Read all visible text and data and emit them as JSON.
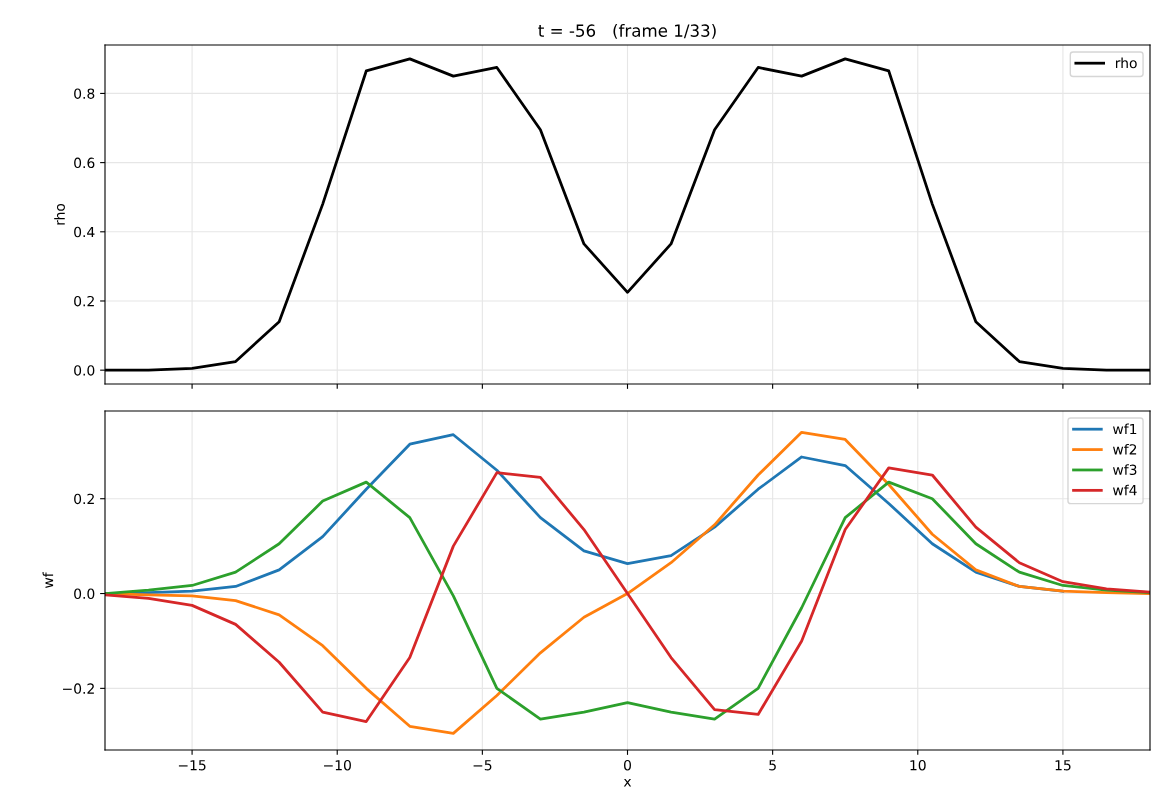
{
  "chart_data": [
    {
      "type": "line",
      "title": "t = -56   (frame 1/33)",
      "ylabel": "rho",
      "x": [
        -18,
        -16.5,
        -15,
        -13.5,
        -12,
        -10.5,
        -9,
        -7.5,
        -6,
        -4.5,
        -3,
        -1.5,
        0,
        1.5,
        3,
        4.5,
        6,
        7.5,
        9,
        10.5,
        12,
        13.5,
        15,
        16.5,
        18
      ],
      "series": [
        {
          "name": "rho",
          "color": "#000000",
          "values": [
            0.0,
            0.0,
            0.005,
            0.025,
            0.14,
            0.48,
            0.865,
            0.9,
            0.85,
            0.875,
            0.695,
            0.365,
            0.225,
            0.365,
            0.695,
            0.875,
            0.85,
            0.9,
            0.865,
            0.48,
            0.14,
            0.025,
            0.005,
            0.0,
            0.0
          ]
        }
      ],
      "xlim": [
        -18,
        18
      ],
      "xticks": [
        {
          "value": -15,
          "label": null
        },
        {
          "value": -10,
          "label": null
        },
        {
          "value": -5,
          "label": null
        },
        {
          "value": 0,
          "label": null
        },
        {
          "value": 5,
          "label": null
        },
        {
          "value": 10,
          "label": null
        },
        {
          "value": 15,
          "label": null
        }
      ],
      "ylim": [
        -0.04,
        0.94
      ],
      "yticks": [
        {
          "value": 0,
          "label": "0.0"
        },
        {
          "value": 0.2,
          "label": "0.2"
        },
        {
          "value": 0.4,
          "label": "0.4"
        },
        {
          "value": 0.6,
          "label": "0.6"
        },
        {
          "value": 0.8,
          "label": "0.8"
        }
      ],
      "tick_labels": "y",
      "grid": true,
      "legend": "top right"
    },
    {
      "type": "line",
      "xlabel": "x",
      "ylabel": "wf",
      "x": [
        -18,
        -16.5,
        -15,
        -13.5,
        -12,
        -10.5,
        -9,
        -7.5,
        -6,
        -4.5,
        -3,
        -1.5,
        0,
        1.5,
        3,
        4.5,
        6,
        7.5,
        9,
        10.5,
        12,
        13.5,
        15,
        16.5,
        18
      ],
      "series": [
        {
          "name": "wf1",
          "color": "#1f77b4",
          "values": [
            0.0,
            0.002,
            0.005,
            0.015,
            0.05,
            0.12,
            0.22,
            0.315,
            0.335,
            0.26,
            0.16,
            0.09,
            0.063,
            0.08,
            0.14,
            0.22,
            0.288,
            0.27,
            0.19,
            0.105,
            0.045,
            0.015,
            0.005,
            null,
            null
          ]
        },
        {
          "name": "wf2",
          "color": "#ff7f0e",
          "values": [
            0.0,
            -0.003,
            -0.005,
            -0.015,
            -0.045,
            -0.11,
            -0.2,
            -0.28,
            -0.295,
            -0.215,
            -0.125,
            -0.05,
            0.0,
            0.065,
            0.145,
            0.25,
            0.34,
            0.325,
            0.23,
            0.125,
            0.05,
            0.015,
            0.005,
            0.002,
            0.0
          ]
        },
        {
          "name": "wf3",
          "color": "#2ca02c",
          "values": [
            0.0,
            0.007,
            0.017,
            0.045,
            0.105,
            0.195,
            0.235,
            0.16,
            -0.005,
            -0.2,
            -0.265,
            -0.25,
            -0.23,
            -0.25,
            -0.265,
            -0.2,
            -0.03,
            0.16,
            0.235,
            0.2,
            0.105,
            0.045,
            0.017,
            0.007,
            0.002
          ]
        },
        {
          "name": "wf4",
          "color": "#d62728",
          "values": [
            -0.003,
            -0.01,
            -0.025,
            -0.065,
            -0.145,
            -0.25,
            -0.27,
            -0.135,
            0.1,
            0.255,
            0.245,
            0.135,
            0.0,
            -0.135,
            -0.245,
            -0.255,
            -0.1,
            0.135,
            0.265,
            0.25,
            0.14,
            0.065,
            0.025,
            0.01,
            0.003
          ]
        }
      ],
      "xlim": [
        -18,
        18
      ],
      "xticks": [
        {
          "value": -15,
          "label": "−15"
        },
        {
          "value": -10,
          "label": "−10"
        },
        {
          "value": -5,
          "label": "−5"
        },
        0,
        5,
        10,
        15
      ],
      "ylim": [
        -0.33,
        0.385
      ],
      "yticks": [
        {
          "value": -0.2,
          "label": "−0.2"
        },
        {
          "value": 0,
          "label": "0.0"
        },
        {
          "value": 0.2,
          "label": "0.2"
        }
      ],
      "grid": true,
      "legend": "top right"
    }
  ]
}
